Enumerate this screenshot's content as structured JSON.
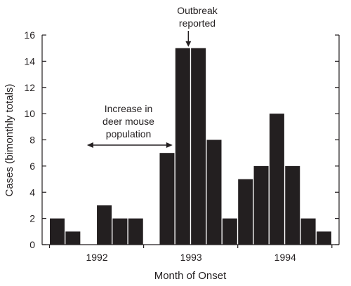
{
  "chart_data": {
    "type": "bar",
    "xlabel": "Month of Onset",
    "ylabel": "Cases (bimonthly totals)",
    "ylim": [
      0,
      16
    ],
    "yticks": [
      0,
      2,
      4,
      6,
      8,
      10,
      12,
      14,
      16
    ],
    "grid": false,
    "bar_color": "#231f20",
    "values": [
      2,
      1,
      0,
      3,
      2,
      2,
      0,
      7,
      15,
      15,
      8,
      2,
      5,
      6,
      10,
      6,
      2,
      1
    ],
    "year_labels": [
      {
        "label": "1992",
        "start_index": 0
      },
      {
        "label": "1993",
        "start_index": 6
      },
      {
        "label": "1994",
        "start_index": 12
      }
    ],
    "annotations": {
      "outbreak": {
        "lines": [
          "Outbreak",
          "reported"
        ],
        "points_to_index": 8
      },
      "increase": {
        "lines": [
          "Increase in",
          "deer mouse",
          "population"
        ],
        "from_index": 2.5,
        "to_index": 8
      }
    }
  }
}
